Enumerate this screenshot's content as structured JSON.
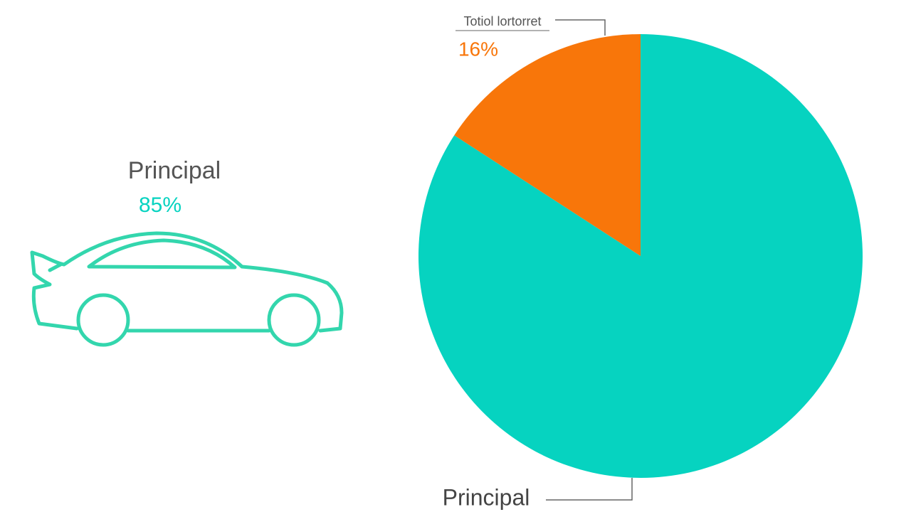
{
  "chart_data": {
    "type": "pie",
    "categories": [
      "Principal",
      "Totiol lortorret"
    ],
    "values": [
      85,
      16
    ],
    "value_labels": [
      "85%",
      "16%"
    ],
    "colors": [
      "#06d3c0",
      "#f8760a"
    ]
  }
}
